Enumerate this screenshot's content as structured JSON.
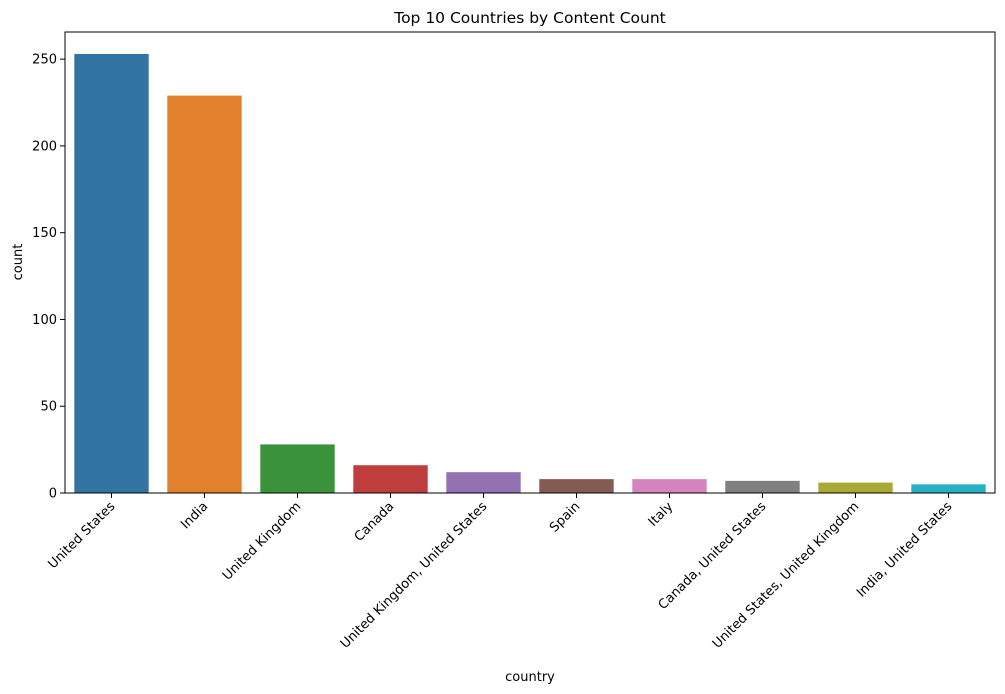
{
  "chart_data": {
    "type": "bar",
    "title": "Top 10 Countries by Content Count",
    "xlabel": "country",
    "ylabel": "count",
    "categories": [
      "United States",
      "India",
      "United Kingdom",
      "Canada",
      "United Kingdom, United States",
      "Spain",
      "Italy",
      "Canada, United States",
      "United States, United Kingdom",
      "India, United States"
    ],
    "values": [
      253,
      229,
      28,
      16,
      12,
      8,
      8,
      7,
      6,
      5
    ],
    "colors": [
      "#3274a1",
      "#e1812c",
      "#3a923a",
      "#c03d3e",
      "#9372b2",
      "#845b53",
      "#d684bd",
      "#7f7f7f",
      "#a9aa35",
      "#2ab0c5"
    ],
    "ylim": [
      0,
      265.65
    ],
    "yticks": [
      0,
      50,
      100,
      150,
      200,
      250
    ],
    "grid": false,
    "legend": "none"
  }
}
